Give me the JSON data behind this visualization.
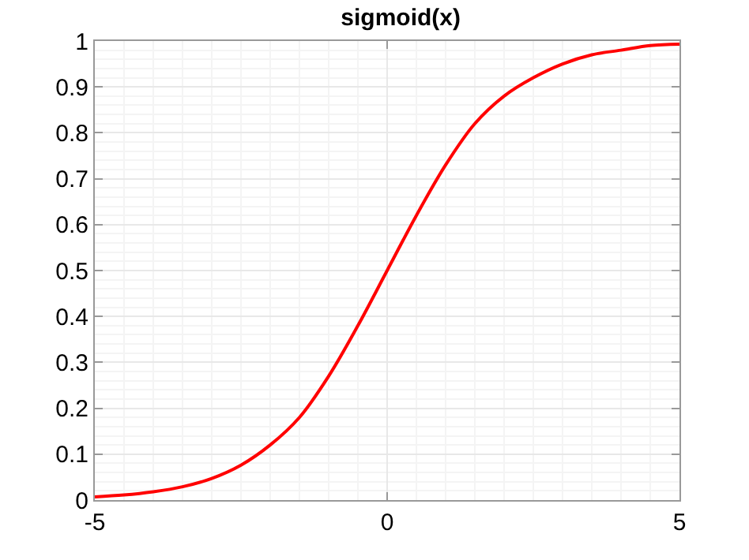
{
  "chart_data": {
    "type": "line",
    "title": "sigmoid(x)",
    "x": [
      -5,
      -4.5,
      -4,
      -3.5,
      -3,
      -2.5,
      -2,
      -1.5,
      -1,
      -0.5,
      0,
      0.5,
      1,
      1.5,
      2,
      2.5,
      3,
      3.5,
      4,
      4.5,
      5
    ],
    "series": [
      {
        "color": "#ff0000",
        "values": [
          0.007,
          0.011,
          0.018,
          0.029,
          0.047,
          0.076,
          0.12,
          0.18,
          0.27,
          0.38,
          0.5,
          0.62,
          0.73,
          0.82,
          0.88,
          0.92,
          0.95,
          0.97,
          0.98,
          0.99,
          0.993
        ]
      }
    ],
    "xlim": [
      -5,
      5
    ],
    "xticks": [
      -5,
      0,
      5
    ],
    "ylim": [
      0,
      1
    ],
    "yticks": [
      0,
      0.1,
      0.2,
      0.3,
      0.4,
      0.5,
      0.6,
      0.7,
      0.8,
      0.9,
      1
    ],
    "grid": true,
    "marker": "none",
    "line_style": "solid"
  }
}
